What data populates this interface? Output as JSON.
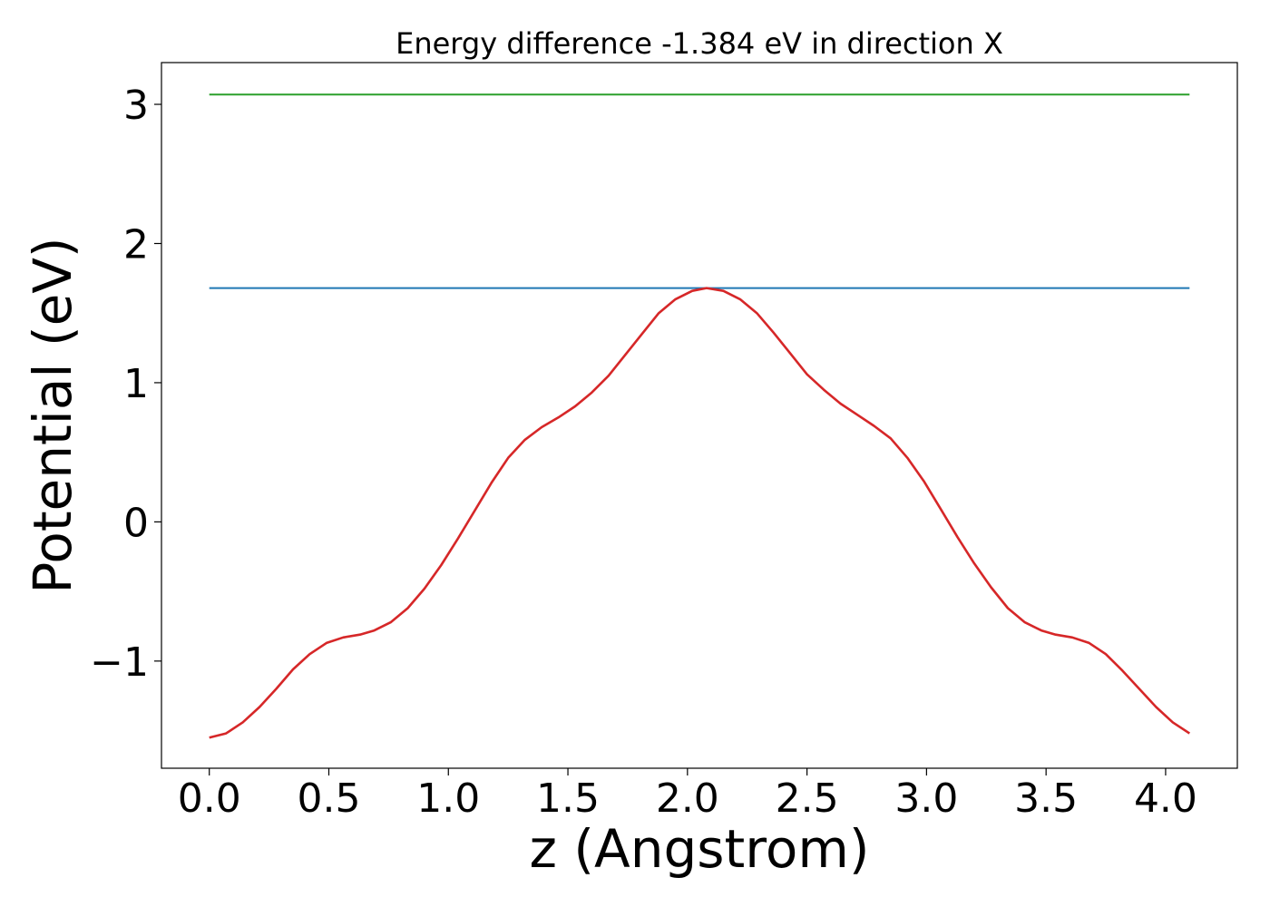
{
  "chart_data": {
    "type": "line",
    "title": "Energy difference -1.384 eV in direction X",
    "xlabel": "z (Angstrom)",
    "ylabel": "Potential (eV)",
    "xlim": [
      -0.2,
      4.3
    ],
    "ylim": [
      -1.77,
      3.3
    ],
    "xticks": [
      {
        "value": 0.0,
        "label": "0.0"
      },
      {
        "value": 0.5,
        "label": "0.5"
      },
      {
        "value": 1.0,
        "label": "1.0"
      },
      {
        "value": 1.5,
        "label": "1.5"
      },
      {
        "value": 2.0,
        "label": "2.0"
      },
      {
        "value": 2.5,
        "label": "2.5"
      },
      {
        "value": 3.0,
        "label": "3.0"
      },
      {
        "value": 3.5,
        "label": "3.5"
      },
      {
        "value": 4.0,
        "label": "4.0"
      }
    ],
    "yticks": [
      {
        "value": -1,
        "label": "−1"
      },
      {
        "value": 0,
        "label": "0"
      },
      {
        "value": 1,
        "label": "1"
      },
      {
        "value": 2,
        "label": "2"
      },
      {
        "value": 3,
        "label": "3"
      }
    ],
    "grid": false,
    "legend": "none",
    "series": [
      {
        "color": "#2ca02c",
        "style": "horizontal",
        "x": [
          0.0,
          4.1
        ],
        "y": [
          3.07,
          3.07
        ]
      },
      {
        "color": "#1f77b4",
        "style": "horizontal",
        "x": [
          0.0,
          4.1
        ],
        "y": [
          1.68,
          1.68
        ]
      },
      {
        "color": "#d62728",
        "style": "curve",
        "x": [
          0.0,
          0.07,
          0.14,
          0.21,
          0.28,
          0.35,
          0.42,
          0.49,
          0.56,
          0.63,
          0.69,
          0.76,
          0.83,
          0.9,
          0.97,
          1.04,
          1.11,
          1.18,
          1.25,
          1.32,
          1.39,
          1.46,
          1.53,
          1.6,
          1.67,
          1.74,
          1.81,
          1.88,
          1.95,
          2.02,
          2.08,
          2.15,
          2.22,
          2.29,
          2.36,
          2.43,
          2.5,
          2.57,
          2.64,
          2.71,
          2.78,
          2.85,
          2.92,
          2.99,
          3.06,
          3.13,
          3.2,
          3.27,
          3.34,
          3.41,
          3.48,
          3.54,
          3.61,
          3.68,
          3.75,
          3.82,
          3.89,
          3.96,
          4.03,
          4.1
        ],
        "y": [
          -1.55,
          -1.52,
          -1.44,
          -1.33,
          -1.2,
          -1.06,
          -0.95,
          -0.87,
          -0.83,
          -0.81,
          -0.78,
          -0.72,
          -0.62,
          -0.48,
          -0.31,
          -0.12,
          0.08,
          0.28,
          0.46,
          0.59,
          0.68,
          0.75,
          0.83,
          0.93,
          1.05,
          1.2,
          1.35,
          1.5,
          1.6,
          1.66,
          1.68,
          1.66,
          1.6,
          1.5,
          1.36,
          1.21,
          1.06,
          0.95,
          0.85,
          0.77,
          0.69,
          0.6,
          0.46,
          0.29,
          0.09,
          -0.11,
          -0.3,
          -0.47,
          -0.62,
          -0.72,
          -0.78,
          -0.81,
          -0.83,
          -0.87,
          -0.95,
          -1.07,
          -1.2,
          -1.33,
          -1.44,
          -1.52
        ]
      }
    ]
  }
}
